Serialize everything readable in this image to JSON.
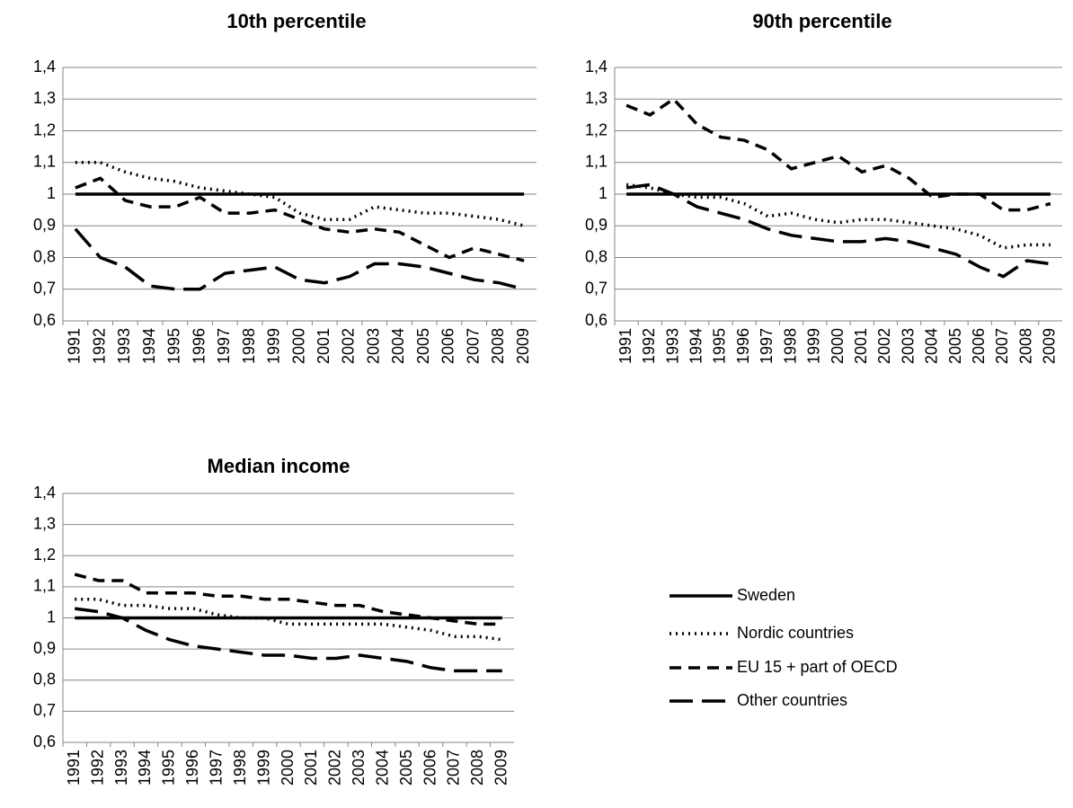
{
  "chart_data": [
    {
      "type": "line",
      "title": "10th percentile",
      "categories": [
        "1991",
        "1992",
        "1993",
        "1994",
        "1995",
        "1996",
        "1997",
        "1998",
        "1999",
        "2000",
        "2001",
        "2002",
        "2003",
        "2004",
        "2005",
        "2006",
        "2007",
        "2008",
        "2009"
      ],
      "ylim": [
        0.6,
        1.4
      ],
      "yticks": [
        {
          "value": 0.6,
          "label": "0,6"
        },
        {
          "value": 0.7,
          "label": "0,7"
        },
        {
          "value": 0.8,
          "label": "0,8"
        },
        {
          "value": 0.9,
          "label": "0,9"
        },
        1,
        {
          "value": 1.1,
          "label": "1,1"
        },
        {
          "value": 1.2,
          "label": "1,2"
        },
        {
          "value": 1.3,
          "label": "1,3"
        },
        {
          "value": 1.4,
          "label": "1,4"
        }
      ],
      "grid": true,
      "series": [
        {
          "color": "#000000",
          "dash": "solid",
          "values": [
            1,
            1,
            1,
            1,
            1,
            1,
            1,
            1,
            1,
            1,
            1,
            1,
            1,
            1,
            1,
            1,
            1,
            1,
            1
          ]
        },
        {
          "color": "#000000",
          "dash": "dotted",
          "values": [
            1.1,
            1.1,
            1.07,
            1.05,
            1.04,
            1.02,
            1.01,
            1.0,
            0.99,
            0.94,
            0.92,
            0.92,
            0.96,
            0.95,
            0.94,
            0.94,
            0.93,
            0.92,
            0.9
          ]
        },
        {
          "color": "#000000",
          "dash": "dashed",
          "values": [
            1.02,
            1.05,
            0.98,
            0.96,
            0.96,
            0.99,
            0.94,
            0.94,
            0.95,
            0.92,
            0.89,
            0.88,
            0.89,
            0.88,
            0.84,
            0.8,
            0.83,
            0.81,
            0.79
          ]
        },
        {
          "color": "#000000",
          "dash": "longdash",
          "values": [
            0.89,
            0.8,
            0.77,
            0.71,
            0.7,
            0.7,
            0.75,
            0.76,
            0.77,
            0.73,
            0.72,
            0.74,
            0.78,
            0.78,
            0.77,
            0.75,
            0.73,
            0.72,
            0.7
          ]
        }
      ]
    },
    {
      "type": "line",
      "title": "90th percentile",
      "categories": [
        "1991",
        "1992",
        "1993",
        "1994",
        "1995",
        "1996",
        "1997",
        "1998",
        "1999",
        "2000",
        "2001",
        "2002",
        "2003",
        "2004",
        "2005",
        "2006",
        "2007",
        "2008",
        "2009"
      ],
      "ylim": [
        0.6,
        1.4
      ],
      "yticks": [
        {
          "value": 0.6,
          "label": "0,6"
        },
        {
          "value": 0.7,
          "label": "0,7"
        },
        {
          "value": 0.8,
          "label": "0,8"
        },
        {
          "value": 0.9,
          "label": "0,9"
        },
        1,
        {
          "value": 1.1,
          "label": "1,1"
        },
        {
          "value": 1.2,
          "label": "1,2"
        },
        {
          "value": 1.3,
          "label": "1,3"
        },
        {
          "value": 1.4,
          "label": "1,4"
        }
      ],
      "grid": true,
      "series": [
        {
          "color": "#000000",
          "dash": "solid",
          "values": [
            1,
            1,
            1,
            1,
            1,
            1,
            1,
            1,
            1,
            1,
            1,
            1,
            1,
            1,
            1,
            1,
            1,
            1,
            1
          ]
        },
        {
          "color": "#000000",
          "dash": "dotted",
          "values": [
            1.03,
            1.02,
            1.0,
            0.99,
            0.99,
            0.97,
            0.93,
            0.94,
            0.92,
            0.91,
            0.92,
            0.92,
            0.91,
            0.9,
            0.89,
            0.87,
            0.83,
            0.84,
            0.84
          ]
        },
        {
          "color": "#000000",
          "dash": "dashed",
          "values": [
            1.28,
            1.25,
            1.3,
            1.22,
            1.18,
            1.17,
            1.14,
            1.08,
            1.1,
            1.12,
            1.07,
            1.09,
            1.05,
            0.99,
            1.0,
            1.0,
            0.95,
            0.95,
            0.97
          ]
        },
        {
          "color": "#000000",
          "dash": "longdash",
          "values": [
            1.02,
            1.03,
            1.0,
            0.96,
            0.94,
            0.92,
            0.89,
            0.87,
            0.86,
            0.85,
            0.85,
            0.86,
            0.85,
            0.83,
            0.81,
            0.77,
            0.74,
            0.79,
            0.78
          ]
        }
      ]
    },
    {
      "type": "line",
      "title": "Median income",
      "categories": [
        "1991",
        "1992",
        "1993",
        "1994",
        "1995",
        "1996",
        "1997",
        "1998",
        "1999",
        "2000",
        "2001",
        "2002",
        "2003",
        "2004",
        "2005",
        "2006",
        "2007",
        "2008",
        "2009"
      ],
      "ylim": [
        0.6,
        1.4
      ],
      "yticks": [
        {
          "value": 0.6,
          "label": "0,6"
        },
        {
          "value": 0.7,
          "label": "0,7"
        },
        {
          "value": 0.8,
          "label": "0,8"
        },
        {
          "value": 0.9,
          "label": "0,9"
        },
        1,
        {
          "value": 1.1,
          "label": "1,1"
        },
        {
          "value": 1.2,
          "label": "1,2"
        },
        {
          "value": 1.3,
          "label": "1,3"
        },
        {
          "value": 1.4,
          "label": "1,4"
        }
      ],
      "grid": true,
      "legend": "right",
      "series": [
        {
          "name": "Sweden",
          "color": "#000000",
          "dash": "solid",
          "values": [
            1,
            1,
            1,
            1,
            1,
            1,
            1,
            1,
            1,
            1,
            1,
            1,
            1,
            1,
            1,
            1,
            1,
            1,
            1
          ]
        },
        {
          "name": "Nordic countries",
          "color": "#000000",
          "dash": "dotted",
          "values": [
            1.06,
            1.06,
            1.04,
            1.04,
            1.03,
            1.03,
            1.01,
            1.0,
            1.0,
            0.98,
            0.98,
            0.98,
            0.98,
            0.98,
            0.97,
            0.96,
            0.94,
            0.94,
            0.93
          ]
        },
        {
          "name": "EU 15 + part of OECD",
          "color": "#000000",
          "dash": "dashed",
          "values": [
            1.14,
            1.12,
            1.12,
            1.08,
            1.08,
            1.08,
            1.07,
            1.07,
            1.06,
            1.06,
            1.05,
            1.04,
            1.04,
            1.02,
            1.01,
            1.0,
            0.99,
            0.98,
            0.98
          ]
        },
        {
          "name": "Other countries",
          "color": "#000000",
          "dash": "longdash",
          "values": [
            1.03,
            1.02,
            1.0,
            0.96,
            0.93,
            0.91,
            0.9,
            0.89,
            0.88,
            0.88,
            0.87,
            0.87,
            0.88,
            0.87,
            0.86,
            0.84,
            0.83,
            0.83,
            0.83
          ]
        }
      ]
    }
  ]
}
